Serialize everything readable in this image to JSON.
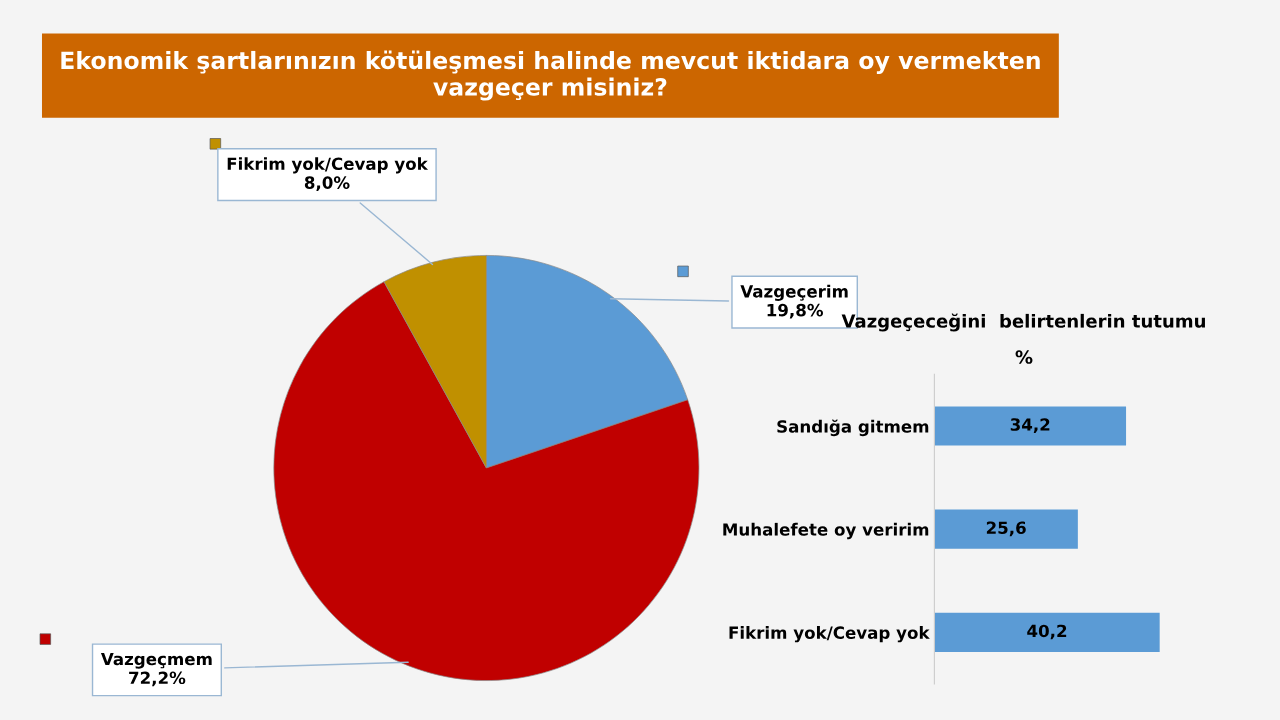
{
  "chart_data": [
    {
      "type": "pie",
      "title": "Ekonomik şartlarınızın kötüleşmesi halinde mevcut iktidara oy vermekten vazgeçer misiniz?",
      "categories": [
        "Vazgeçerim",
        "Vazgeçmem",
        "Fikrim yok/Cevap yok"
      ],
      "values": [
        19.8,
        72.2,
        8.0
      ],
      "colors": [
        "#5b9bd5",
        "#c00000",
        "#c09000"
      ],
      "value_labels": [
        "19,8%",
        "72,2%",
        "8,0%"
      ]
    },
    {
      "type": "bar",
      "orientation": "horizontal",
      "title": "Vazgeçeceğini  belirtenlerin tutumu",
      "subtitle": "%",
      "categories": [
        "Sandığa gitmem",
        "Muhalefete oy veririm",
        "Fikrim yok/Cevap yok"
      ],
      "values": [
        34.2,
        25.6,
        40.2
      ],
      "color": "#5b9bd5",
      "value_labels": [
        "34,2",
        "25,6",
        "40,2"
      ]
    }
  ]
}
